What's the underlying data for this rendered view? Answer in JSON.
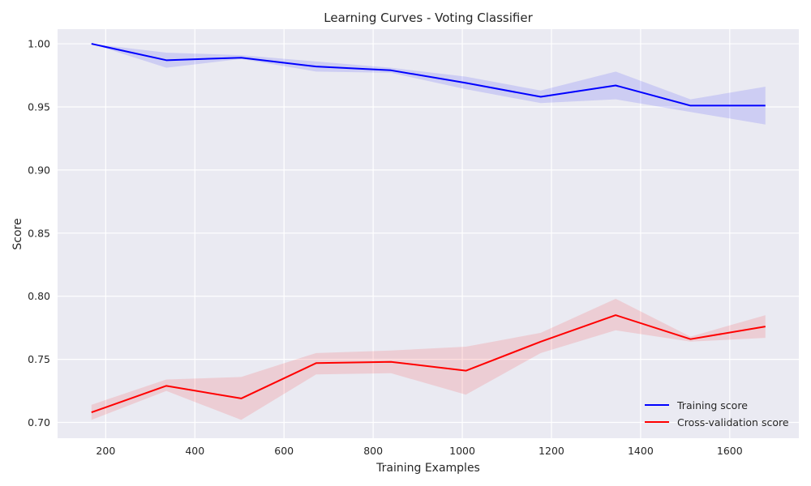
{
  "chart_data": {
    "type": "line",
    "title": "Learning Curves - Voting Classifier",
    "xlabel": "Training Examples",
    "ylabel": "Score",
    "xlim": [
      92,
      1755
    ],
    "ylim": [
      0.6875,
      1.0116
    ],
    "x_ticks": [
      200,
      400,
      600,
      800,
      1000,
      1200,
      1400,
      1600
    ],
    "y_ticks": [
      0.7,
      0.75,
      0.8,
      0.85,
      0.9,
      0.95,
      1.0
    ],
    "grid": true,
    "legend_position": "lower-right",
    "x": [
      168,
      336,
      504,
      672,
      840,
      1008,
      1176,
      1344,
      1512,
      1680
    ],
    "series": [
      {
        "name": "Training score",
        "color": "#0000ff",
        "band_color": "#0000ff",
        "values": [
          1.0,
          0.987,
          0.989,
          0.982,
          0.979,
          0.969,
          0.958,
          0.967,
          0.951,
          0.951
        ],
        "upper": [
          1.0,
          0.993,
          0.991,
          0.986,
          0.981,
          0.974,
          0.963,
          0.978,
          0.956,
          0.966
        ],
        "lower": [
          1.0,
          0.981,
          0.988,
          0.978,
          0.977,
          0.964,
          0.953,
          0.956,
          0.946,
          0.936
        ]
      },
      {
        "name": "Cross-validation score",
        "color": "#ff0000",
        "band_color": "#ff0000",
        "values": [
          0.708,
          0.729,
          0.719,
          0.747,
          0.748,
          0.741,
          0.764,
          0.785,
          0.766,
          0.776
        ],
        "upper": [
          0.714,
          0.734,
          0.736,
          0.755,
          0.757,
          0.76,
          0.771,
          0.798,
          0.768,
          0.785
        ],
        "lower": [
          0.702,
          0.725,
          0.702,
          0.738,
          0.739,
          0.722,
          0.755,
          0.773,
          0.764,
          0.767
        ]
      }
    ]
  }
}
